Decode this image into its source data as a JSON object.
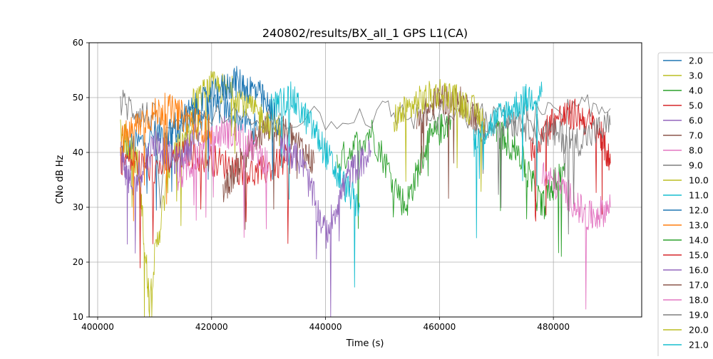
{
  "chart_data": {
    "type": "line",
    "title": "240802/results/BX_all_1 GPS L1(CA)",
    "xlabel": "Time (s)",
    "ylabel": "CNo dB Hz",
    "xlim": [
      398500,
      495500
    ],
    "ylim": [
      10,
      60
    ],
    "xticks": [
      400000,
      420000,
      440000,
      460000,
      480000
    ],
    "xtick_labels": [
      "400000",
      "420000",
      "440000",
      "460000",
      "480000"
    ],
    "yticks": [
      10,
      20,
      30,
      40,
      50,
      60
    ],
    "ytick_labels": [
      "10",
      "20",
      "30",
      "40",
      "50",
      "60"
    ],
    "grid": true,
    "legend_position": "right, outside plot (clipped)",
    "series": [
      {
        "name": "2.0",
        "color": "#1f77b4",
        "x": [
          404000,
          410000,
          416000,
          422000,
          428000
        ],
        "y": [
          40,
          43,
          46,
          48,
          44
        ]
      },
      {
        "name": "3.0",
        "color": "#bcbd22",
        "x": [
          404000,
          407000,
          409000,
          413000,
          418000
        ],
        "y": [
          44,
          38,
          14,
          40,
          45
        ]
      },
      {
        "name": "4.0",
        "color": "#2ca02c",
        "x": [
          442000,
          448000,
          454000,
          458000,
          462000
        ],
        "y": [
          38,
          44,
          30,
          42,
          46
        ]
      },
      {
        "name": "5.0",
        "color": "#d62728",
        "x": [
          404000,
          410000,
          416000,
          422000,
          428000,
          434000
        ],
        "y": [
          39,
          37,
          40,
          38,
          36,
          39
        ]
      },
      {
        "name": "6.0",
        "color": "#9467bd",
        "x": [
          404000,
          406000,
          410000,
          414000,
          418000
        ],
        "y": [
          40,
          33,
          42,
          38,
          44
        ]
      },
      {
        "name": "7.0",
        "color": "#8c564b",
        "x": [
          422000,
          426000,
          430000,
          434000,
          438000
        ],
        "y": [
          33,
          40,
          45,
          43,
          38
        ]
      },
      {
        "name": "8.0",
        "color": "#e377c2",
        "x": [
          414000,
          418000,
          422000,
          426000,
          430000
        ],
        "y": [
          35,
          40,
          44,
          42,
          38
        ]
      },
      {
        "name": "9.0",
        "color": "#7f7f7f",
        "x": [
          404000,
          410000,
          450000,
          470000,
          490000
        ],
        "y": [
          49,
          46,
          47,
          46,
          48
        ]
      },
      {
        "name": "10.0",
        "color": "#bcbd22",
        "x": [
          416000,
          420000,
          424000,
          428000,
          432000
        ],
        "y": [
          48,
          52,
          51,
          47,
          44
        ]
      },
      {
        "name": "11.0",
        "color": "#17becf",
        "x": [
          430000,
          434000,
          438000,
          442000,
          446000
        ],
        "y": [
          48,
          50,
          44,
          36,
          30
        ]
      },
      {
        "name": "12.0",
        "color": "#1f77b4",
        "x": [
          412000,
          416000,
          420000,
          424000,
          428000,
          432000
        ],
        "y": [
          42,
          47,
          50,
          53,
          51,
          45
        ]
      },
      {
        "name": "13.0",
        "color": "#ff7f0e",
        "x": [
          404000,
          408000,
          412000,
          416000,
          420000
        ],
        "y": [
          42,
          46,
          48,
          46,
          44
        ]
      },
      {
        "name": "14.0",
        "color": "#2ca02c",
        "x": [
          470000,
          474000,
          478000,
          482000
        ],
        "y": [
          44,
          40,
          30,
          38
        ]
      },
      {
        "name": "15.0",
        "color": "#d62728",
        "x": [
          476000,
          480000,
          484000,
          488000,
          490000
        ],
        "y": [
          40,
          46,
          47,
          44,
          38
        ]
      },
      {
        "name": "16.0",
        "color": "#9467bd",
        "x": [
          432000,
          436000,
          440000,
          444000,
          448000
        ],
        "y": [
          42,
          38,
          25,
          36,
          40
        ]
      },
      {
        "name": "17.0",
        "color": "#8c564b",
        "x": [
          456000,
          460000,
          464000,
          468000
        ],
        "y": [
          45,
          50,
          49,
          45
        ]
      },
      {
        "name": "18.0",
        "color": "#e377c2",
        "x": [
          478000,
          482000,
          486000,
          490000
        ],
        "y": [
          36,
          33,
          28,
          30
        ]
      },
      {
        "name": "19.0",
        "color": "#7f7f7f",
        "x": [
          466000,
          472000,
          478000,
          484000,
          490000
        ],
        "y": [
          44,
          46,
          44,
          42,
          45
        ]
      },
      {
        "name": "20.0",
        "color": "#bcbd22",
        "x": [
          452000,
          456000,
          460000,
          464000,
          468000
        ],
        "y": [
          46,
          49,
          51,
          49,
          46
        ]
      },
      {
        "name": "21.0",
        "color": "#17becf",
        "x": [
          466000,
          470000,
          474000,
          478000
        ],
        "y": [
          42,
          46,
          49,
          51
        ]
      }
    ]
  }
}
